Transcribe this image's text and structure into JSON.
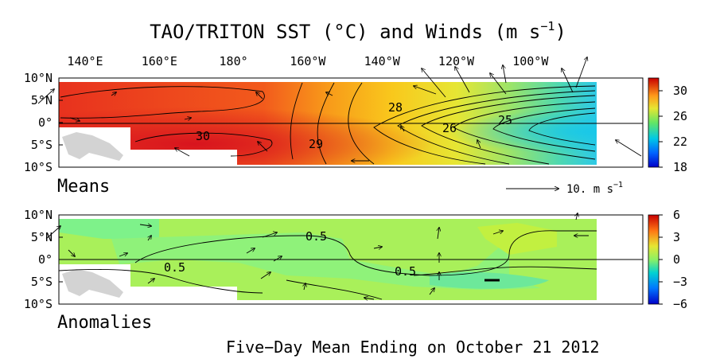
{
  "title": "TAO/TRITON SST (°C) and Winds (m s",
  "title_sup": "−1",
  "title_close": ")",
  "footer": "Five−Day Mean Ending on October 21 2012",
  "colors": {
    "background": "#ffffff",
    "land": "#d3d3d3"
  },
  "lon_ticks": [
    "140°E",
    "160°E",
    "180°",
    "160°W",
    "140°W",
    "120°W",
    "100°W"
  ],
  "panels": [
    {
      "id": "means",
      "label": "Means",
      "lat_ticks": [
        "10°N",
        "5°N",
        "0°",
        "5°S",
        "10°S"
      ],
      "colorbar": {
        "ticks": [
          "30",
          "26",
          "22",
          "18"
        ],
        "range": [
          18,
          32
        ],
        "colors": [
          "#0000cc",
          "#00ccff",
          "#33cc99",
          "#ccff33",
          "#ffcc00",
          "#ff6600",
          "#cc0000"
        ]
      },
      "contour_labels": [
        "30",
        "29",
        "28",
        "26",
        "25"
      ],
      "scale_text": "10.  m s",
      "scale_sup": "−1"
    },
    {
      "id": "anomalies",
      "label": "Anomalies",
      "lat_ticks": [
        "10°N",
        "5°N",
        "0°",
        "5°S",
        "10°S"
      ],
      "colorbar": {
        "ticks": [
          "6",
          "3",
          "0",
          "−3",
          "−6"
        ],
        "range": [
          -6,
          6
        ],
        "colors": [
          "#0000cc",
          "#00aaff",
          "#33ff99",
          "#ccff33",
          "#ffcc00",
          "#ff6600",
          "#cc0000"
        ]
      },
      "contour_labels": [
        "0.5",
        "0.5",
        "0.5"
      ]
    }
  ],
  "chart_data": [
    {
      "type": "heatmap",
      "title": "TAO/TRITON SST (°C) and Winds (m s−1)",
      "panel": "Means",
      "x_ticks": [
        "140°E",
        "160°E",
        "180°",
        "160°W",
        "140°W",
        "120°W",
        "100°W"
      ],
      "y_ticks": [
        "10°N",
        "5°N",
        "0°",
        "5°S",
        "10°S"
      ],
      "colorbar_range": [
        18,
        32
      ],
      "contour_labels": [
        30,
        29,
        28,
        26,
        25
      ],
      "vector_scale": "10. m s−1",
      "grid": false
    },
    {
      "type": "heatmap",
      "panel": "Anomalies",
      "x_ticks": [
        "140°E",
        "160°E",
        "180°",
        "160°W",
        "140°W",
        "120°W",
        "100°W"
      ],
      "y_ticks": [
        "10°N",
        "5°N",
        "0°",
        "5°S",
        "10°S"
      ],
      "colorbar_range": [
        -6,
        6
      ],
      "contour_labels": [
        0.5,
        0.5,
        0.5
      ],
      "grid": false
    }
  ]
}
